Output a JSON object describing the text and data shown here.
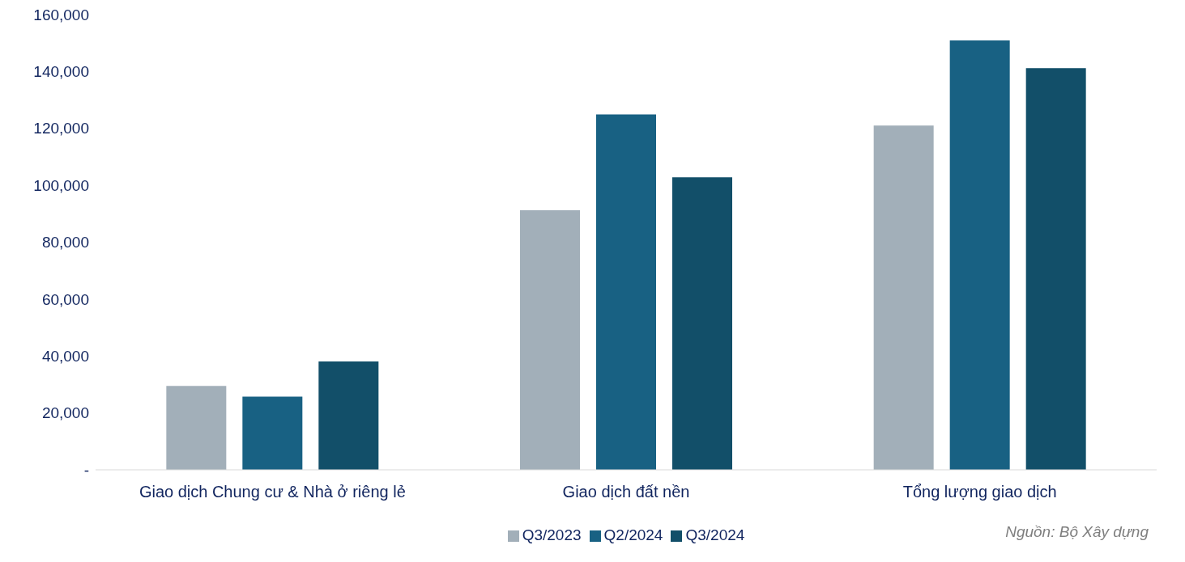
{
  "chart_data": {
    "type": "bar",
    "categories": [
      "Giao dịch Chung cư & Nhà ở riêng lẻ",
      "Giao dịch đất nền",
      "Tổng lượng giao dịch"
    ],
    "series": [
      {
        "name": "Q3/2023",
        "color": "#a2afb9",
        "values": [
          29500,
          91200,
          121000
        ]
      },
      {
        "name": "Q2/2024",
        "color": "#186183",
        "values": [
          25700,
          124900,
          150900
        ]
      },
      {
        "name": "Q3/2024",
        "color": "#124f69",
        "values": [
          38100,
          102800,
          141200
        ]
      }
    ],
    "ylim": [
      0,
      160000
    ],
    "yticks": [
      {
        "value": 0,
        "label": "-"
      },
      {
        "value": 20000,
        "label": "20,000"
      },
      {
        "value": 40000,
        "label": "40,000"
      },
      {
        "value": 60000,
        "label": "60,000"
      },
      {
        "value": 80000,
        "label": "80,000"
      },
      {
        "value": 100000,
        "label": "100,000"
      },
      {
        "value": 120000,
        "label": "120,000"
      },
      {
        "value": 140000,
        "label": "140,000"
      },
      {
        "value": 160000,
        "label": "160,000"
      }
    ],
    "grid": false,
    "legend": "bottom",
    "annotations": [
      "Nguồn: Bộ Xây dựng"
    ]
  }
}
